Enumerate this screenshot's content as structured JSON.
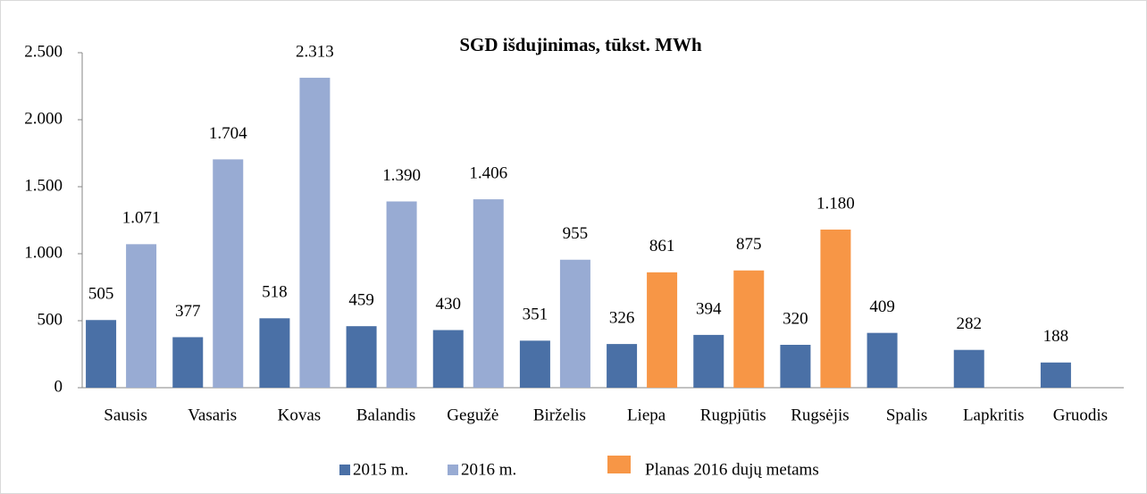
{
  "chart_data": {
    "type": "bar",
    "title": "SGD išdujinimas, tūkst. MWh",
    "categories": [
      "Sausis",
      "Vasaris",
      "Kovas",
      "Balandis",
      "Gegužė",
      "Birželis",
      "Liepa",
      "Rugpjūtis",
      "Rugsėjis",
      "Spalis",
      "Lapkritis",
      "Gruodis"
    ],
    "series": [
      {
        "name": "2015 m.",
        "color": "#4a70a6",
        "values": [
          505,
          377,
          518,
          459,
          430,
          351,
          326,
          394,
          320,
          409,
          282,
          188
        ]
      },
      {
        "name": "2016 m.",
        "color": "#98abd3",
        "values": [
          1071,
          1704,
          2313,
          1390,
          1406,
          955,
          null,
          null,
          null,
          null,
          null,
          null
        ],
        "value_labels": [
          "1.071",
          "1.704",
          "2.313",
          "1.390",
          "1.406",
          "955",
          null,
          null,
          null,
          null,
          null,
          null
        ]
      },
      {
        "name": "Planas 2016 dujų metams",
        "color": "#f79646",
        "values": [
          null,
          null,
          null,
          null,
          null,
          null,
          861,
          875,
          1180,
          null,
          null,
          null
        ],
        "value_labels": [
          null,
          null,
          null,
          null,
          null,
          null,
          "861",
          "875",
          "1.180",
          null,
          null,
          null
        ]
      }
    ],
    "ylim": [
      0,
      2500
    ],
    "yticks": [
      0,
      500,
      {
        "value": 1000,
        "label": "1.000"
      },
      {
        "value": 1500,
        "label": "1.500"
      },
      {
        "value": 2000,
        "label": "2.000"
      },
      {
        "value": 2500,
        "label": "2.500"
      }
    ],
    "grid": false
  }
}
